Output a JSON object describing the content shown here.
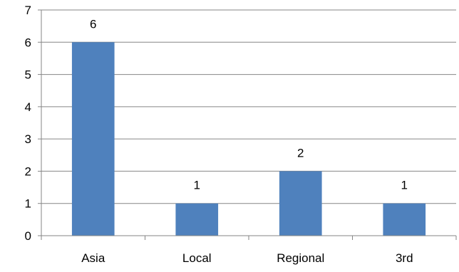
{
  "chart_data": {
    "type": "bar",
    "title": "",
    "xlabel": "",
    "ylabel": "",
    "categories": [
      "Asia",
      "Local",
      "Regional",
      "3rd"
    ],
    "values": [
      6,
      1,
      2,
      1
    ],
    "value_labels": [
      "6",
      "1",
      "2",
      "1"
    ],
    "ylim": [
      0,
      7
    ],
    "yticks": [
      "0",
      "1",
      "2",
      "3",
      "4",
      "5",
      "6",
      "7"
    ],
    "grid": true,
    "legend": "none",
    "colors": {
      "bar": "#4f81bd",
      "grid": "#868686"
    }
  }
}
